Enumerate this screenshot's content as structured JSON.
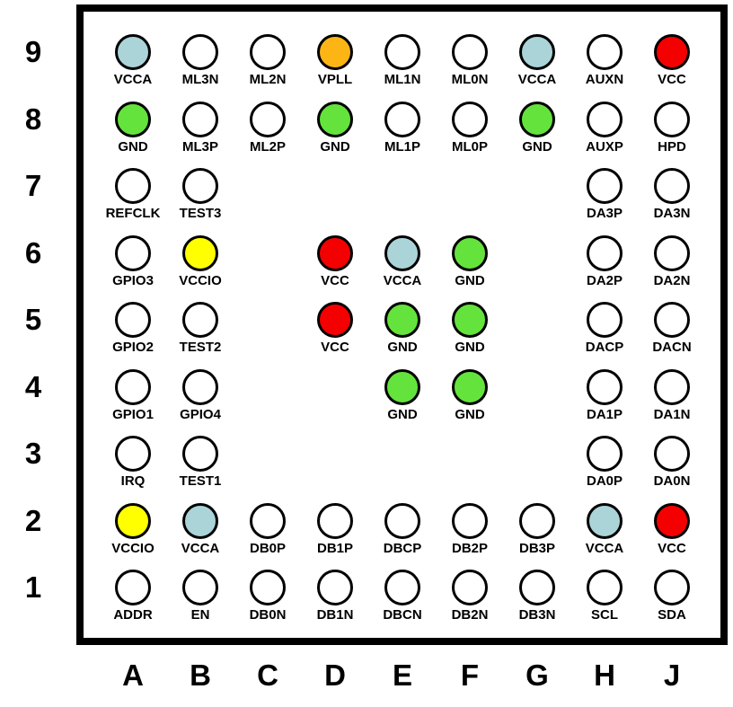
{
  "diagram": {
    "type": "bga-pinout-grid",
    "rows": [
      "9",
      "8",
      "7",
      "6",
      "5",
      "4",
      "3",
      "2",
      "1"
    ],
    "columns": [
      "A",
      "B",
      "C",
      "D",
      "E",
      "F",
      "G",
      "H",
      "J"
    ],
    "colors": {
      "white": "#ffffff",
      "blue": "#aad4d8",
      "green": "#64e33c",
      "red": "#f50000",
      "yellow": "#ffff00",
      "orange": "#fdb515"
    },
    "pins": [
      {
        "col": "A",
        "row": "9",
        "label": "VCCA",
        "color": "blue"
      },
      {
        "col": "B",
        "row": "9",
        "label": "ML3N",
        "color": "white"
      },
      {
        "col": "C",
        "row": "9",
        "label": "ML2N",
        "color": "white"
      },
      {
        "col": "D",
        "row": "9",
        "label": "VPLL",
        "color": "orange"
      },
      {
        "col": "E",
        "row": "9",
        "label": "ML1N",
        "color": "white"
      },
      {
        "col": "F",
        "row": "9",
        "label": "ML0N",
        "color": "white"
      },
      {
        "col": "G",
        "row": "9",
        "label": "VCCA",
        "color": "blue"
      },
      {
        "col": "H",
        "row": "9",
        "label": "AUXN",
        "color": "white"
      },
      {
        "col": "J",
        "row": "9",
        "label": "VCC",
        "color": "red"
      },
      {
        "col": "A",
        "row": "8",
        "label": "GND",
        "color": "green"
      },
      {
        "col": "B",
        "row": "8",
        "label": "ML3P",
        "color": "white"
      },
      {
        "col": "C",
        "row": "8",
        "label": "ML2P",
        "color": "white"
      },
      {
        "col": "D",
        "row": "8",
        "label": "GND",
        "color": "green"
      },
      {
        "col": "E",
        "row": "8",
        "label": "ML1P",
        "color": "white"
      },
      {
        "col": "F",
        "row": "8",
        "label": "ML0P",
        "color": "white"
      },
      {
        "col": "G",
        "row": "8",
        "label": "GND",
        "color": "green"
      },
      {
        "col": "H",
        "row": "8",
        "label": "AUXP",
        "color": "white"
      },
      {
        "col": "J",
        "row": "8",
        "label": "HPD",
        "color": "white"
      },
      {
        "col": "A",
        "row": "7",
        "label": "REFCLK",
        "color": "white"
      },
      {
        "col": "B",
        "row": "7",
        "label": "TEST3",
        "color": "white"
      },
      {
        "col": "H",
        "row": "7",
        "label": "DA3P",
        "color": "white"
      },
      {
        "col": "J",
        "row": "7",
        "label": "DA3N",
        "color": "white"
      },
      {
        "col": "A",
        "row": "6",
        "label": "GPIO3",
        "color": "white"
      },
      {
        "col": "B",
        "row": "6",
        "label": "VCCIO",
        "color": "yellow"
      },
      {
        "col": "D",
        "row": "6",
        "label": "VCC",
        "color": "red"
      },
      {
        "col": "E",
        "row": "6",
        "label": "VCCA",
        "color": "blue"
      },
      {
        "col": "F",
        "row": "6",
        "label": "GND",
        "color": "green"
      },
      {
        "col": "H",
        "row": "6",
        "label": "DA2P",
        "color": "white"
      },
      {
        "col": "J",
        "row": "6",
        "label": "DA2N",
        "color": "white"
      },
      {
        "col": "A",
        "row": "5",
        "label": "GPIO2",
        "color": "white"
      },
      {
        "col": "B",
        "row": "5",
        "label": "TEST2",
        "color": "white"
      },
      {
        "col": "D",
        "row": "5",
        "label": "VCC",
        "color": "red"
      },
      {
        "col": "E",
        "row": "5",
        "label": "GND",
        "color": "green"
      },
      {
        "col": "F",
        "row": "5",
        "label": "GND",
        "color": "green"
      },
      {
        "col": "H",
        "row": "5",
        "label": "DACP",
        "color": "white"
      },
      {
        "col": "J",
        "row": "5",
        "label": "DACN",
        "color": "white"
      },
      {
        "col": "A",
        "row": "4",
        "label": "GPIO1",
        "color": "white"
      },
      {
        "col": "B",
        "row": "4",
        "label": "GPIO4",
        "color": "white"
      },
      {
        "col": "E",
        "row": "4",
        "label": "GND",
        "color": "green"
      },
      {
        "col": "F",
        "row": "4",
        "label": "GND",
        "color": "green"
      },
      {
        "col": "H",
        "row": "4",
        "label": "DA1P",
        "color": "white"
      },
      {
        "col": "J",
        "row": "4",
        "label": "DA1N",
        "color": "white"
      },
      {
        "col": "A",
        "row": "3",
        "label": "IRQ",
        "color": "white"
      },
      {
        "col": "B",
        "row": "3",
        "label": "TEST1",
        "color": "white"
      },
      {
        "col": "H",
        "row": "3",
        "label": "DA0P",
        "color": "white"
      },
      {
        "col": "J",
        "row": "3",
        "label": "DA0N",
        "color": "white"
      },
      {
        "col": "A",
        "row": "2",
        "label": "VCCIO",
        "color": "yellow"
      },
      {
        "col": "B",
        "row": "2",
        "label": "VCCA",
        "color": "blue"
      },
      {
        "col": "C",
        "row": "2",
        "label": "DB0P",
        "color": "white"
      },
      {
        "col": "D",
        "row": "2",
        "label": "DB1P",
        "color": "white"
      },
      {
        "col": "E",
        "row": "2",
        "label": "DBCP",
        "color": "white"
      },
      {
        "col": "F",
        "row": "2",
        "label": "DB2P",
        "color": "white"
      },
      {
        "col": "G",
        "row": "2",
        "label": "DB3P",
        "color": "white"
      },
      {
        "col": "H",
        "row": "2",
        "label": "VCCA",
        "color": "blue"
      },
      {
        "col": "J",
        "row": "2",
        "label": "VCC",
        "color": "red"
      },
      {
        "col": "A",
        "row": "1",
        "label": "ADDR",
        "color": "white"
      },
      {
        "col": "B",
        "row": "1",
        "label": "EN",
        "color": "white"
      },
      {
        "col": "C",
        "row": "1",
        "label": "DB0N",
        "color": "white"
      },
      {
        "col": "D",
        "row": "1",
        "label": "DB1N",
        "color": "white"
      },
      {
        "col": "E",
        "row": "1",
        "label": "DBCN",
        "color": "white"
      },
      {
        "col": "F",
        "row": "1",
        "label": "DB2N",
        "color": "white"
      },
      {
        "col": "G",
        "row": "1",
        "label": "DB3N",
        "color": "white"
      },
      {
        "col": "H",
        "row": "1",
        "label": "SCL",
        "color": "white"
      },
      {
        "col": "J",
        "row": "1",
        "label": "SDA",
        "color": "white"
      }
    ]
  }
}
